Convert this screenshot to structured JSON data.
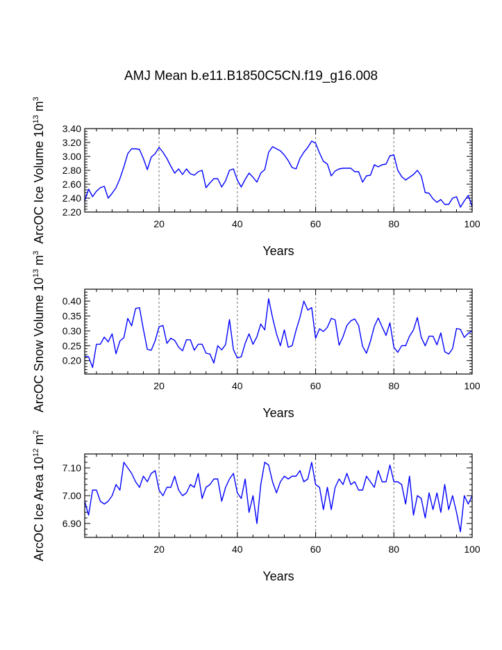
{
  "title": "AMJ Mean b.e11.B1850C5CN.f19_g16.008",
  "chart_data": [
    {
      "type": "line",
      "ylabel": "ArcOC Ice Volume 10",
      "ylabel_exp": "13",
      "ylabel_unit": "m",
      "ylabel_unit_exp": "3",
      "xlabel": "Years",
      "xlim": [
        1,
        100
      ],
      "ylim": [
        2.2,
        3.4
      ],
      "yticks": [
        "2.20",
        "2.40",
        "2.60",
        "2.80",
        "3.00",
        "3.20",
        "3.40"
      ],
      "xticks": [
        "20",
        "40",
        "60",
        "80",
        "100"
      ],
      "gridlines_x": [
        20,
        40,
        60,
        80
      ],
      "line_color": "#0000ff",
      "x_start": 1,
      "values": [
        2.36,
        2.53,
        2.42,
        2.5,
        2.55,
        2.57,
        2.4,
        2.47,
        2.55,
        2.68,
        2.85,
        3.04,
        3.11,
        3.11,
        3.1,
        2.97,
        2.81,
        2.99,
        3.04,
        3.13,
        3.06,
        2.97,
        2.86,
        2.76,
        2.82,
        2.74,
        2.82,
        2.75,
        2.73,
        2.78,
        2.8,
        2.55,
        2.62,
        2.68,
        2.68,
        2.56,
        2.65,
        2.8,
        2.82,
        2.66,
        2.56,
        2.67,
        2.76,
        2.7,
        2.63,
        2.76,
        2.81,
        3.06,
        3.14,
        3.11,
        3.08,
        3.02,
        2.94,
        2.84,
        2.82,
        2.97,
        3.06,
        3.13,
        3.22,
        3.19,
        3.05,
        2.93,
        2.89,
        2.72,
        2.79,
        2.82,
        2.83,
        2.83,
        2.83,
        2.78,
        2.78,
        2.63,
        2.72,
        2.73,
        2.88,
        2.85,
        2.88,
        2.89,
        3.01,
        3.02,
        2.8,
        2.71,
        2.66,
        2.7,
        2.74,
        2.8,
        2.72,
        2.48,
        2.47,
        2.39,
        2.34,
        2.38,
        2.31,
        2.31,
        2.4,
        2.42,
        2.27,
        2.36,
        2.44,
        2.28
      ]
    },
    {
      "type": "line",
      "ylabel": "ArcOC Snow Volume 10",
      "ylabel_exp": "13",
      "ylabel_unit": "m",
      "ylabel_unit_exp": "3",
      "xlabel": "Years",
      "xlim": [
        1,
        100
      ],
      "ylim": [
        0.155,
        0.44
      ],
      "yticks": [
        "0.20",
        "0.25",
        "0.30",
        "0.35",
        "0.40"
      ],
      "xticks": [
        "20",
        "40",
        "60",
        "80",
        "100"
      ],
      "gridlines_x": [
        20,
        40,
        60,
        80
      ],
      "line_color": "#0000ff",
      "x_start": 1,
      "values": [
        0.215,
        0.213,
        0.177,
        0.255,
        0.255,
        0.279,
        0.263,
        0.29,
        0.223,
        0.266,
        0.277,
        0.342,
        0.317,
        0.375,
        0.378,
        0.305,
        0.238,
        0.235,
        0.267,
        0.314,
        0.318,
        0.258,
        0.275,
        0.268,
        0.245,
        0.233,
        0.27,
        0.27,
        0.235,
        0.255,
        0.255,
        0.225,
        0.222,
        0.192,
        0.25,
        0.236,
        0.254,
        0.338,
        0.237,
        0.209,
        0.213,
        0.258,
        0.29,
        0.255,
        0.28,
        0.323,
        0.303,
        0.408,
        0.345,
        0.29,
        0.25,
        0.303,
        0.245,
        0.25,
        0.302,
        0.345,
        0.4,
        0.37,
        0.378,
        0.275,
        0.307,
        0.298,
        0.312,
        0.342,
        0.337,
        0.252,
        0.28,
        0.318,
        0.334,
        0.34,
        0.318,
        0.248,
        0.225,
        0.265,
        0.315,
        0.343,
        0.313,
        0.285,
        0.327,
        0.245,
        0.228,
        0.25,
        0.25,
        0.282,
        0.303,
        0.345,
        0.278,
        0.25,
        0.282,
        0.282,
        0.253,
        0.293,
        0.23,
        0.222,
        0.24,
        0.308,
        0.305,
        0.278,
        0.292,
        0.3
      ]
    },
    {
      "type": "line",
      "ylabel": "ArcOC Ice Area 10",
      "ylabel_exp": "12",
      "ylabel_unit": "m",
      "ylabel_unit_exp": "2",
      "xlabel": "Years",
      "xlim": [
        1,
        100
      ],
      "ylim": [
        6.85,
        7.15
      ],
      "yticks": [
        "6.90",
        "7.00",
        "7.10"
      ],
      "xticks": [
        "20",
        "40",
        "60",
        "80",
        "100"
      ],
      "gridlines_x": [
        20,
        40,
        60,
        80
      ],
      "line_color": "#0000ff",
      "x_start": 1,
      "values": [
        6.98,
        6.93,
        7.02,
        7.02,
        6.98,
        6.97,
        6.98,
        7.0,
        7.04,
        7.02,
        7.12,
        7.1,
        7.08,
        7.05,
        7.03,
        7.07,
        7.05,
        7.08,
        7.09,
        7.02,
        7.0,
        7.03,
        7.03,
        7.07,
        7.02,
        7.0,
        7.01,
        7.04,
        7.03,
        7.08,
        6.99,
        7.03,
        7.04,
        7.06,
        7.06,
        6.98,
        7.03,
        7.06,
        7.08,
        7.01,
        6.99,
        7.06,
        6.94,
        7.0,
        6.9,
        7.04,
        7.12,
        7.11,
        7.05,
        7.01,
        7.05,
        7.07,
        7.06,
        7.07,
        7.07,
        7.09,
        7.05,
        7.06,
        7.12,
        7.04,
        7.03,
        6.95,
        7.03,
        6.95,
        7.03,
        7.06,
        7.04,
        7.08,
        7.04,
        7.05,
        7.02,
        7.02,
        7.07,
        7.05,
        7.03,
        7.09,
        7.05,
        7.05,
        7.11,
        7.05,
        7.05,
        7.04,
        6.97,
        7.07,
        6.93,
        7.0,
        6.99,
        6.92,
        7.01,
        6.95,
        7.01,
        6.94,
        7.04,
        6.95,
        7.0,
        6.94,
        6.87,
        7.0,
        6.97,
        7.0
      ]
    }
  ]
}
